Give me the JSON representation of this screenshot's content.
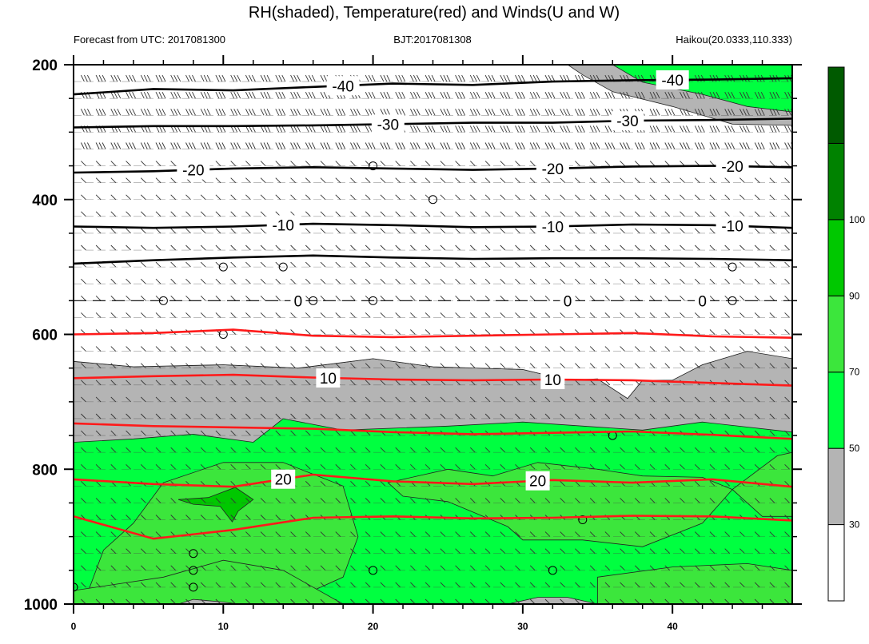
{
  "chart_data": {
    "type": "contour",
    "title": "RH(shaded), Temperature(red) and Winds(U and W)",
    "subtitle_left": "Forecast from UTC: 2017081300",
    "subtitle_center": "BJT:2017081308",
    "subtitle_right": "Haikou(20.0333,110.333)",
    "x_range": [
      0,
      48
    ],
    "x_ticks": [
      "0",
      "10",
      "20",
      "30",
      "40"
    ],
    "x_tick_values": [
      0,
      10,
      20,
      30,
      40
    ],
    "y_range": [
      200,
      1000
    ],
    "y_ticks": [
      "200",
      "400",
      "600",
      "800",
      "1000"
    ],
    "y_tick_values": [
      200,
      400,
      600,
      800,
      1000
    ],
    "y_reversed": true,
    "colorbar": {
      "labels": [
        "30",
        "50",
        "70",
        "90",
        "100"
      ],
      "levels": [
        30,
        50,
        70,
        90,
        100
      ],
      "colors": [
        "#ffffff",
        "#b4b4b4",
        "#00ff40",
        "#3ce63c",
        "#00c800",
        "#008200",
        "#005a00"
      ]
    },
    "temperature_contours": [
      {
        "value": -40,
        "label": "-40",
        "style": "black",
        "pressure": [
          244,
          236,
          238,
          233,
          228,
          230,
          225,
          223,
          222,
          220
        ]
      },
      {
        "value": -30,
        "label": "-30",
        "style": "black",
        "pressure": [
          293,
          291,
          291,
          290,
          288,
          286,
          286,
          283,
          282,
          280
        ]
      },
      {
        "value": -20,
        "label": "-20",
        "style": "black",
        "pressure": [
          360,
          358,
          354,
          352,
          354,
          356,
          354,
          351,
          350,
          352
        ]
      },
      {
        "value": -10,
        "label": "-10",
        "style": "black",
        "pressure": [
          440,
          442,
          440,
          436,
          438,
          441,
          440,
          437,
          438,
          442
        ]
      },
      {
        "value": -5,
        "label": "",
        "style": "black",
        "pressure": [
          495,
          490,
          486,
          483,
          486,
          488,
          487,
          487,
          488,
          490
        ]
      },
      {
        "value": 0,
        "label": "0",
        "style": "dashed",
        "pressure": [
          550,
          550,
          550,
          550,
          550,
          550,
          550,
          550,
          550,
          550
        ]
      },
      {
        "value": 5,
        "label": "",
        "style": "red",
        "pressure": [
          600,
          598,
          593,
          602,
          604,
          602,
          600,
          598,
          603,
          605
        ]
      },
      {
        "value": 10,
        "label": "10",
        "style": "red",
        "pressure": [
          665,
          662,
          660,
          664,
          667,
          668,
          667,
          668,
          672,
          676
        ]
      },
      {
        "value": 15,
        "label": "",
        "style": "red",
        "pressure": [
          732,
          736,
          738,
          740,
          745,
          748,
          746,
          744,
          749,
          755
        ]
      },
      {
        "value": 20,
        "label": "20",
        "style": "red",
        "pressure": [
          815,
          822,
          826,
          808,
          818,
          822,
          816,
          820,
          815,
          826
        ]
      },
      {
        "value": 25,
        "label": "",
        "style": "red",
        "pressure": [
          870,
          903,
          890,
          872,
          870,
          873,
          872,
          869,
          870,
          876
        ]
      }
    ],
    "legend": "colorbar right"
  }
}
